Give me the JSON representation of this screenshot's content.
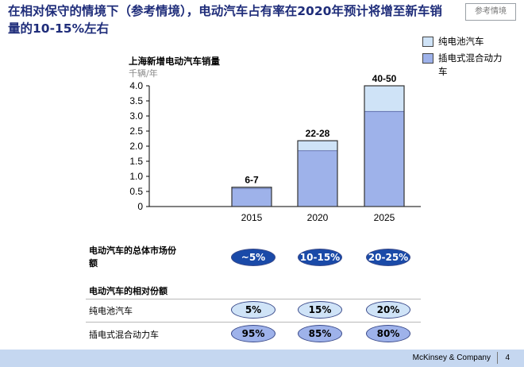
{
  "slide": {
    "title": "在相对保守的情境下（参考情境），电动汽车占有率在2020年预计将增至新车销量的10-15%左右",
    "tag": "参考情境"
  },
  "legend": [
    {
      "label": "纯电池汽车",
      "color": "#cfe3f7"
    },
    {
      "label": "插电式混合动力车",
      "color": "#9eb2ea"
    }
  ],
  "chart_data": {
    "type": "bar",
    "title": "上海新增电动汽车销量",
    "unit": "千辆/年",
    "categories": [
      "2015",
      "2020",
      "2025"
    ],
    "series": [
      {
        "name": "插电式混合动力车",
        "values": [
          0.6,
          1.85,
          3.15
        ],
        "color": "#9eb2ea"
      },
      {
        "name": "纯电池汽车",
        "values": [
          0.04,
          0.33,
          0.85
        ],
        "color": "#cfe3f7"
      }
    ],
    "bar_labels": [
      "6-7",
      "22-28",
      "40-50"
    ],
    "ylim": [
      0,
      4.0
    ],
    "yticks": [
      "0",
      "0.5",
      "1.0",
      "1.5",
      "2.0",
      "2.5",
      "3.0",
      "3.5",
      "4.0"
    ],
    "stacked": true
  },
  "table": {
    "total_share_label": "电动汽车的总体市场份额",
    "total_share": [
      "~5%",
      "10-15%",
      "20-25%"
    ],
    "relative_share_label": "电动汽车的相对份额",
    "rows": [
      {
        "label": "纯电池汽车",
        "values": [
          "5%",
          "15%",
          "20%"
        ]
      },
      {
        "label": "插电式混合动力车",
        "values": [
          "95%",
          "85%",
          "80%"
        ]
      }
    ]
  },
  "footer": {
    "brand": "McKinsey & Company",
    "page": "4"
  }
}
